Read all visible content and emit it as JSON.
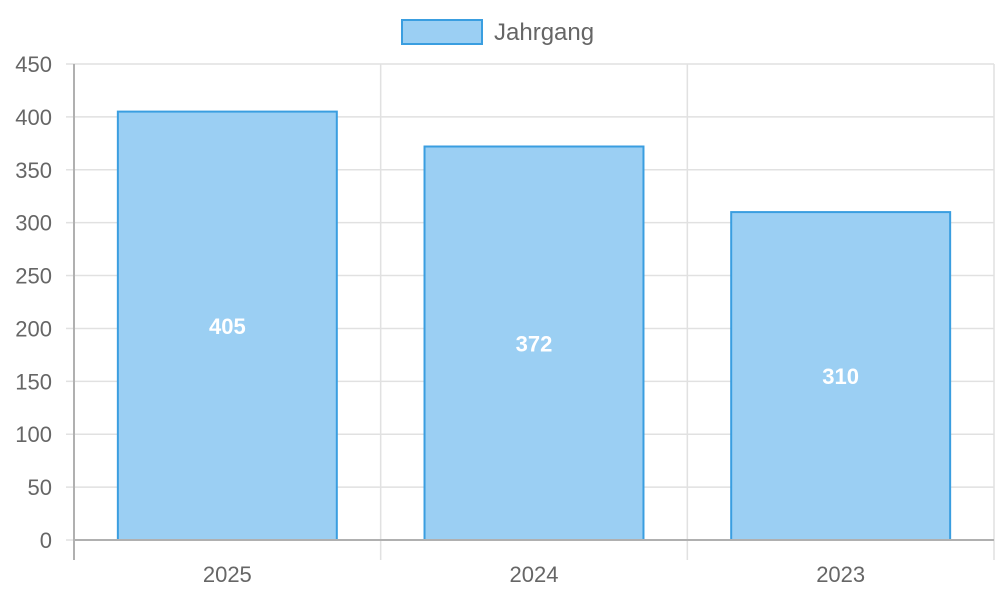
{
  "chart_data": {
    "type": "bar",
    "categories": [
      "2025",
      "2024",
      "2023"
    ],
    "series": [
      {
        "name": "Jahrgang",
        "values": [
          405,
          372,
          310
        ]
      }
    ],
    "ylim": [
      0,
      450
    ],
    "yticks": [
      "0",
      "50",
      "100",
      "150",
      "200",
      "250",
      "300",
      "350",
      "400",
      "450"
    ],
    "grid": true,
    "legend_position": "top",
    "data_labels": [
      "405",
      "372",
      "310"
    ],
    "colors": {
      "bar_fill": "#9bcff3",
      "bar_stroke": "#3a9ee0",
      "grid": "#e1e1e1",
      "axis": "#b0b0b0",
      "tick_text": "#666666"
    }
  }
}
